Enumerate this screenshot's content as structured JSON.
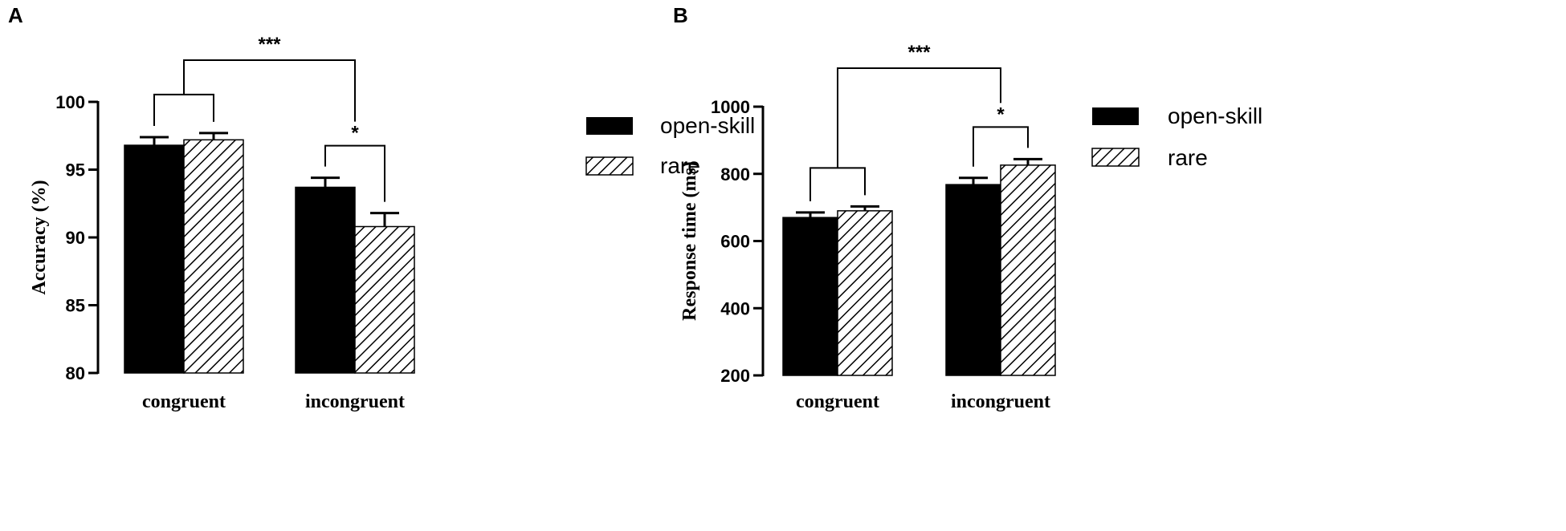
{
  "colors": {
    "openskill": "#000000",
    "rare_hatch": "#000000",
    "background": "#ffffff"
  },
  "chart_data": [
    {
      "type": "bar",
      "panel": "A",
      "categories": [
        "congruent",
        "incongruent"
      ],
      "series": [
        {
          "name": "open-skill",
          "values": [
            96.8,
            93.7
          ],
          "errors": [
            0.6,
            0.7
          ],
          "pattern": "solid"
        },
        {
          "name": "rare",
          "values": [
            97.2,
            90.8
          ],
          "errors": [
            0.5,
            1.0
          ],
          "pattern": "hatched"
        }
      ],
      "ylabel": "Accuracy (%)",
      "ylim": [
        80,
        100
      ],
      "yticks": [
        80,
        85,
        90,
        95,
        100
      ],
      "legend": "right",
      "annotations": [
        {
          "type": "bracket",
          "label": "",
          "between": "congruent open-skill vs rare"
        },
        {
          "type": "bracket",
          "label": "*",
          "between": "incongruent open-skill vs rare"
        },
        {
          "type": "bracket",
          "label": "***",
          "between": "congruent vs incongruent"
        }
      ]
    },
    {
      "type": "bar",
      "panel": "B",
      "categories": [
        "congruent",
        "incongruent"
      ],
      "series": [
        {
          "name": "open-skill",
          "values": [
            670,
            768
          ],
          "errors": [
            15,
            20
          ],
          "pattern": "solid"
        },
        {
          "name": "rare",
          "values": [
            690,
            826
          ],
          "errors": [
            13,
            18
          ],
          "pattern": "hatched"
        }
      ],
      "ylabel": "Response time (ms)",
      "ylim": [
        200,
        1000
      ],
      "yticks": [
        200,
        400,
        600,
        800,
        1000
      ],
      "legend": "right",
      "annotations": [
        {
          "type": "bracket",
          "label": "",
          "between": "congruent open-skill vs rare"
        },
        {
          "type": "bracket",
          "label": "*",
          "between": "incongruent open-skill vs rare"
        },
        {
          "type": "bracket",
          "label": "***",
          "between": "congruent vs incongruent"
        }
      ]
    }
  ]
}
